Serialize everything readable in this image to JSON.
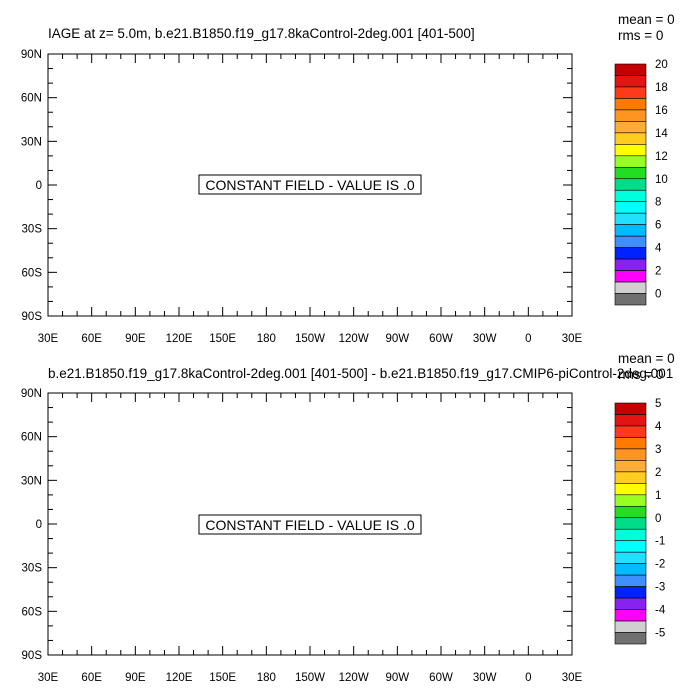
{
  "panels": [
    {
      "id": "top",
      "title": "IAGE at z=   5.0m, b.e21.B1850.f19_g17.8kaControl-2deg.001 [401-500]",
      "stats": {
        "mean": "mean = 0",
        "rms": "rms = 0"
      },
      "message": "CONSTANT FIELD - VALUE IS .0",
      "colorbar_labels": [
        "20",
        "18",
        "16",
        "14",
        "12",
        "10",
        "8",
        "6",
        "4",
        "2",
        "0"
      ]
    },
    {
      "id": "bottom",
      "title": "b.e21.B1850.f19_g17.8kaControl-2deg.001 [401-500] - b.e21.B1850.f19_g17.CMIP6-piControl-2deg.001",
      "stats": {
        "mean": "mean = 0",
        "rms": "rms = 0"
      },
      "message": "CONSTANT FIELD - VALUE IS .0",
      "colorbar_labels": [
        "5",
        "4",
        "3",
        "2",
        "1",
        "0",
        "-1",
        "-2",
        "-3",
        "-4",
        "-5"
      ]
    }
  ],
  "chart_data": {
    "type": "heatmap",
    "x_ticks": [
      30,
      60,
      90,
      120,
      150,
      180,
      210,
      240,
      270,
      300,
      330,
      360,
      390
    ],
    "x_tick_labels": [
      "30E",
      "60E",
      "90E",
      "120E",
      "150E",
      "180",
      "150W",
      "120W",
      "90W",
      "60W",
      "30W",
      "0",
      "30E"
    ],
    "y_ticks": [
      90,
      60,
      30,
      0,
      -30,
      -60,
      -90
    ],
    "y_tick_labels": [
      "90N",
      "60N",
      "30N",
      "0",
      "30S",
      "60S",
      "90S"
    ],
    "xlim": [
      30,
      390
    ],
    "ylim": [
      -90,
      90
    ],
    "field_value": 0,
    "colorbar_colors": [
      "#c40000",
      "#e41414",
      "#ff3a1a",
      "#ff7a00",
      "#ff9520",
      "#ffad38",
      "#ffcc22",
      "#ffff00",
      "#99ff22",
      "#22dd22",
      "#00dd88",
      "#00ffdd",
      "#00ffff",
      "#22e0ff",
      "#00bbff",
      "#3f8fff",
      "#0022ff",
      "#8822ee",
      "#ff00ff",
      "#d0d0d0",
      "#707070"
    ]
  }
}
